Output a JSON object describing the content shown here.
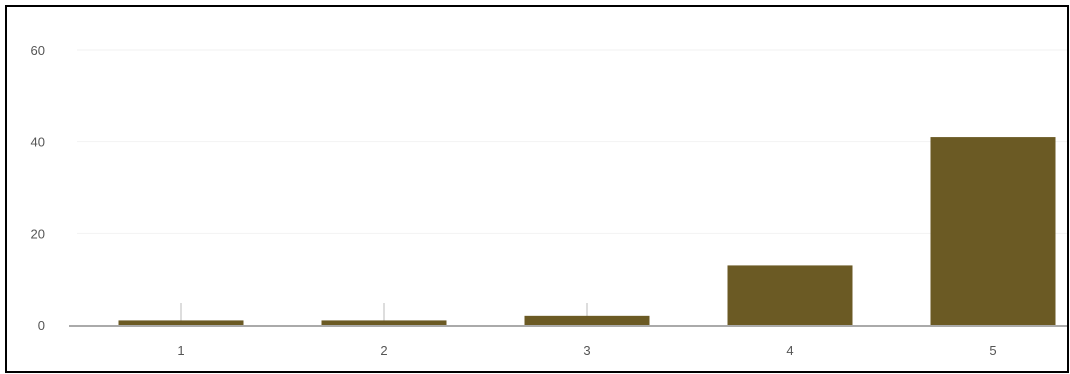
{
  "chart_data": {
    "type": "bar",
    "categories": [
      "1",
      "2",
      "3",
      "4",
      "5"
    ],
    "values": [
      1,
      1,
      2,
      13,
      41
    ],
    "title": "",
    "xlabel": "",
    "ylabel": "",
    "ylim": [
      0,
      60
    ],
    "yticks": [
      "0",
      "20",
      "40",
      "60"
    ],
    "grid": true,
    "legend": "none",
    "colors": {
      "bar": "#6b5a24",
      "axis": "#aaaaaa",
      "grid": "#f2f2f2",
      "tick_text": "#555555"
    }
  }
}
